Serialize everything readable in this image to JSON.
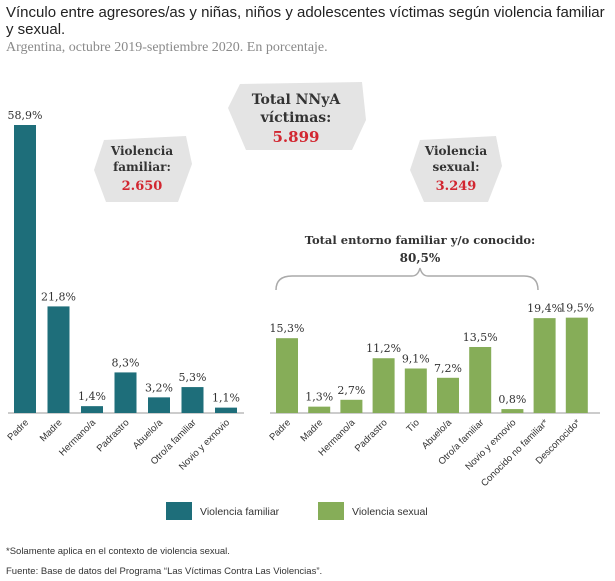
{
  "header": {
    "title": "Vínculo entre agresores/as y niñas, niños y adolescentes víctimas según violencia familiar y sexual.",
    "subtitle": "Argentina, octubre 2019-septiembre 2020. En porcentaje."
  },
  "callouts": {
    "total": {
      "line1": "Total NNyA",
      "line2": "víctimas:",
      "value": "5.899"
    },
    "familiar": {
      "line1": "Violencia",
      "line2": "familiar:",
      "value": "2.650"
    },
    "sexual": {
      "line1": "Violencia",
      "line2": "sexual:",
      "value": "3.249"
    },
    "entorno": {
      "line1": "Total entorno familiar y/o conocido:",
      "value": "80,5%"
    }
  },
  "footnotes": {
    "note": "*Solamente aplica en el contexto de violencia sexual.",
    "source": "Fuente: Base de datos del Programa “Las Víctimas Contra Las Violencias”."
  },
  "colors": {
    "familiar": "#1e6e7a",
    "sexual": "#86ad58",
    "callout_bg": "#e4e4e4",
    "value_red": "#d22630"
  },
  "chart_data": {
    "type": "bar",
    "ylim": [
      0,
      60
    ],
    "series": [
      {
        "name": "Violencia familiar",
        "color": "#1e6e7a",
        "categories": [
          "Padre",
          "Madre",
          "Hermano/a",
          "Padrastro",
          "Abuelo/a",
          "Otro/a familiar",
          "Novio y exnovio"
        ],
        "values": [
          58.9,
          21.8,
          1.4,
          8.3,
          3.2,
          5.3,
          1.1
        ],
        "labels": [
          "58,9%",
          "21,8%",
          "1,4%",
          "8,3%",
          "3,2%",
          "5,3%",
          "1,1%"
        ]
      },
      {
        "name": "Violencia sexual",
        "color": "#86ad58",
        "categories": [
          "Padre",
          "Madre",
          "Hermano/a",
          "Padrastro",
          "Tío",
          "Abuelo/a",
          "Otro/a familiar",
          "Novio y exnovio",
          "Conocido no familiar*",
          "Desconocido*"
        ],
        "values": [
          15.3,
          1.3,
          2.7,
          11.2,
          9.1,
          7.2,
          13.5,
          0.8,
          19.4,
          19.5
        ],
        "labels": [
          "15,3%",
          "1,3%",
          "2,7%",
          "11,2%",
          "9,1%",
          "7,2%",
          "13,5%",
          "0,8%",
          "19,4%",
          "19,5%"
        ]
      }
    ],
    "legend": {
      "position": "bottom",
      "entries": [
        "Violencia familiar",
        "Violencia sexual"
      ]
    }
  }
}
